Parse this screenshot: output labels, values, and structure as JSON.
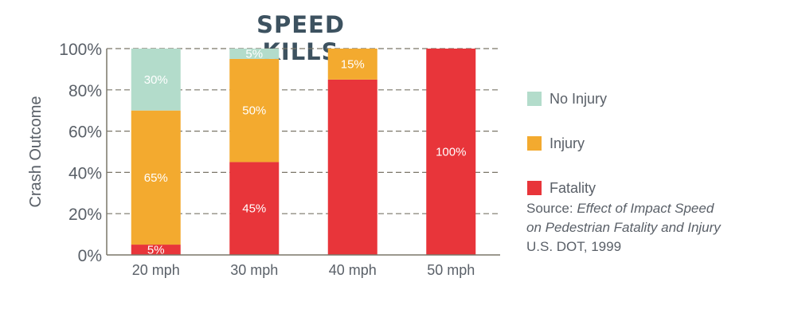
{
  "colors": {
    "title": "#3d5260",
    "axis_text": "#5a6068",
    "grid": "#7a7668",
    "no_injury": "#b3dccb",
    "injury": "#f3aa2f",
    "fatality": "#e8353a",
    "segment_label": "#ffffff"
  },
  "chart_data": {
    "type": "bar",
    "stacked": true,
    "title": "SPEED KILLS",
    "xlabel": "",
    "ylabel": "Crash Outcome",
    "ylim": [
      0,
      100
    ],
    "yticks": [
      0,
      20,
      40,
      60,
      80,
      100
    ],
    "ytick_labels": [
      "0%",
      "20%",
      "40%",
      "60%",
      "80%",
      "100%"
    ],
    "categories": [
      "20 mph",
      "30 mph",
      "40 mph",
      "50 mph"
    ],
    "series": [
      {
        "name": "Fatality",
        "color_key": "fatality",
        "values": [
          5,
          45,
          85,
          100
        ],
        "labels": [
          "5%",
          "45%",
          "",
          "100%"
        ]
      },
      {
        "name": "Injury",
        "color_key": "injury",
        "values": [
          65,
          50,
          15,
          0
        ],
        "labels": [
          "65%",
          "50%",
          "15%",
          ""
        ]
      },
      {
        "name": "No Injury",
        "color_key": "no_injury",
        "values": [
          30,
          5,
          0,
          0
        ],
        "labels": [
          "30%",
          "5%",
          "",
          ""
        ]
      }
    ],
    "grid": "dashed",
    "legend": {
      "position": "right",
      "items": [
        {
          "label": "No Injury",
          "color_key": "no_injury"
        },
        {
          "label": "Injury",
          "color_key": "injury"
        },
        {
          "label": "Fatality",
          "color_key": "fatality"
        }
      ]
    }
  },
  "source": {
    "prefix": "Source: ",
    "title_line1": "Effect of Impact Speed",
    "title_line2": "on Pedestrian Fatality and Injury",
    "publisher": "U.S. DOT, 1999"
  }
}
